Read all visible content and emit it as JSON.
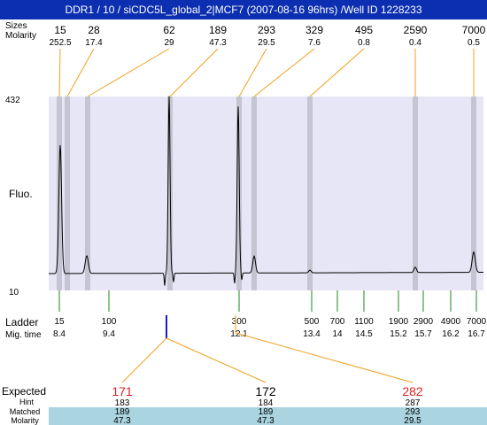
{
  "window": {
    "title": "DDR1 / 10 / siCDC5L_global_2|MCF7 (2007-08-16 96hrs) /Well ID 1228233"
  },
  "chart_data": {
    "type": "line",
    "row_labels": {
      "sizes": "Sizes",
      "molarity": "Molarity",
      "fluo": "Fluo.",
      "ladder": "Ladder",
      "mig_time": "Mig. time",
      "expected": "Expected",
      "hint": "Hint",
      "matched": "Matched",
      "molarity_bottom": "Molarity"
    },
    "y_axis": {
      "max_label": "432",
      "min_label": "10",
      "range": [
        10,
        432
      ]
    },
    "peaks": [
      {
        "size": "15",
        "molarity": "252.5"
      },
      {
        "size": "28",
        "molarity": "17.4"
      },
      {
        "size": "62",
        "molarity": "29"
      },
      {
        "size": "189",
        "molarity": "47.3"
      },
      {
        "size": "293",
        "molarity": "29.5"
      },
      {
        "size": "329",
        "molarity": "7.6"
      },
      {
        "size": "495",
        "molarity": "0.8"
      },
      {
        "size": "2590",
        "molarity": "0.4"
      },
      {
        "size": "7000",
        "molarity": "0.5"
      }
    ],
    "ladder": [
      {
        "size": "15",
        "time": "8.4"
      },
      {
        "size": "100",
        "time": "9.4"
      },
      {
        "size": "300",
        "time": "12.1"
      },
      {
        "size": "500",
        "time": "13.4"
      },
      {
        "size": "700",
        "time": "14"
      },
      {
        "size": "1100",
        "time": "14.5"
      },
      {
        "size": "1900",
        "time": "15.2"
      },
      {
        "size": "2900",
        "time": "15.7"
      },
      {
        "size": "4900",
        "time": "16.2"
      },
      {
        "size": "7000",
        "time": "16.7"
      }
    ],
    "expected": [
      {
        "expected": "171",
        "hint": "183",
        "matched": "189",
        "molarity": "47.3",
        "color": "#e02020"
      },
      {
        "expected": "172",
        "hint": "184",
        "matched": "189",
        "molarity": "47.3",
        "color": "#000000"
      },
      {
        "expected": "282",
        "hint": "287",
        "matched": "293",
        "molarity": "29.5",
        "color": "#e02020"
      }
    ],
    "colors": {
      "plot_bg": "#e6e6f6",
      "band": "#c4c4d2",
      "leader": "#f0a020",
      "ladder_tick": "#1a8a1a",
      "marker": "#1a1acc",
      "table_row": "#a9d4e0"
    }
  }
}
